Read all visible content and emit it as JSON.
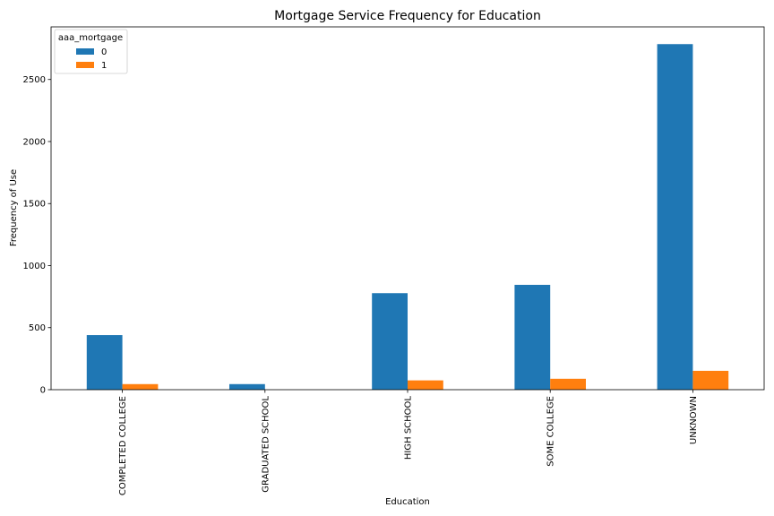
{
  "chart_data": {
    "type": "bar",
    "title": "Mortgage Service Frequency for Education",
    "xlabel": "Education",
    "ylabel": "Frequency of Use",
    "categories": [
      "COMPLETED COLLEGE",
      "GRADUATED SCHOOL",
      "HIGH SCHOOL",
      "SOME COLLEGE",
      "UNKNOWN"
    ],
    "series": [
      {
        "name": "0",
        "color": "#1f77b4",
        "values": [
          440,
          45,
          778,
          845,
          2785
        ]
      },
      {
        "name": "1",
        "color": "#ff7f0e",
        "values": [
          45,
          0,
          75,
          88,
          152
        ]
      }
    ],
    "ylim": [
      0,
      2924
    ],
    "yticks": [
      0,
      500,
      1000,
      1500,
      2000,
      2500
    ],
    "ytick_labels": [
      "0",
      "500",
      "1000",
      "1500",
      "2000",
      "2500"
    ],
    "legend": {
      "title": "aaa_mortgage",
      "position": "top-left"
    },
    "grid": false
  }
}
